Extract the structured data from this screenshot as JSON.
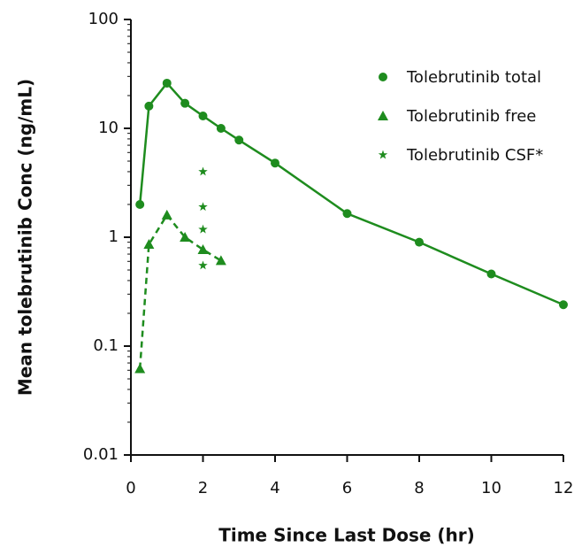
{
  "chart_data": {
    "type": "line",
    "x_label": "Time Since Last Dose (hr)",
    "y_label": "Mean tolebrutinib Conc (ng/mL)",
    "xlim": [
      0,
      12
    ],
    "xticks": [
      0,
      2,
      4,
      6,
      8,
      10,
      12
    ],
    "ylim": [
      0.01,
      100
    ],
    "yticks": [
      0.01,
      0.1,
      1,
      10,
      100
    ],
    "y_scale": "log",
    "legend": "upper right",
    "series": [
      {
        "name": "Tolebrutinib total",
        "color": "#1e8c1e",
        "marker": "circle",
        "line_style": "solid",
        "x": [
          0.25,
          0.5,
          1,
          1.5,
          2,
          2.5,
          3,
          4,
          6,
          8,
          10,
          12
        ],
        "values": [
          2.0,
          16,
          26,
          17,
          13,
          10,
          7.8,
          4.8,
          1.65,
          0.9,
          0.46,
          0.24
        ]
      },
      {
        "name": "Tolebrutinib free",
        "color": "#1e8c1e",
        "marker": "triangle",
        "line_style": "dashed",
        "x": [
          0.25,
          0.5,
          1,
          1.5,
          2,
          2.5
        ],
        "values": [
          0.062,
          0.86,
          1.6,
          1.0,
          0.77,
          0.61
        ]
      },
      {
        "name": "Tolebrutinib CSF*",
        "color": "#1e8c1e",
        "marker": "star",
        "line_style": "none",
        "x": [
          2,
          2,
          2,
          2
        ],
        "values": [
          4.0,
          1.9,
          1.18,
          0.55
        ]
      }
    ]
  }
}
